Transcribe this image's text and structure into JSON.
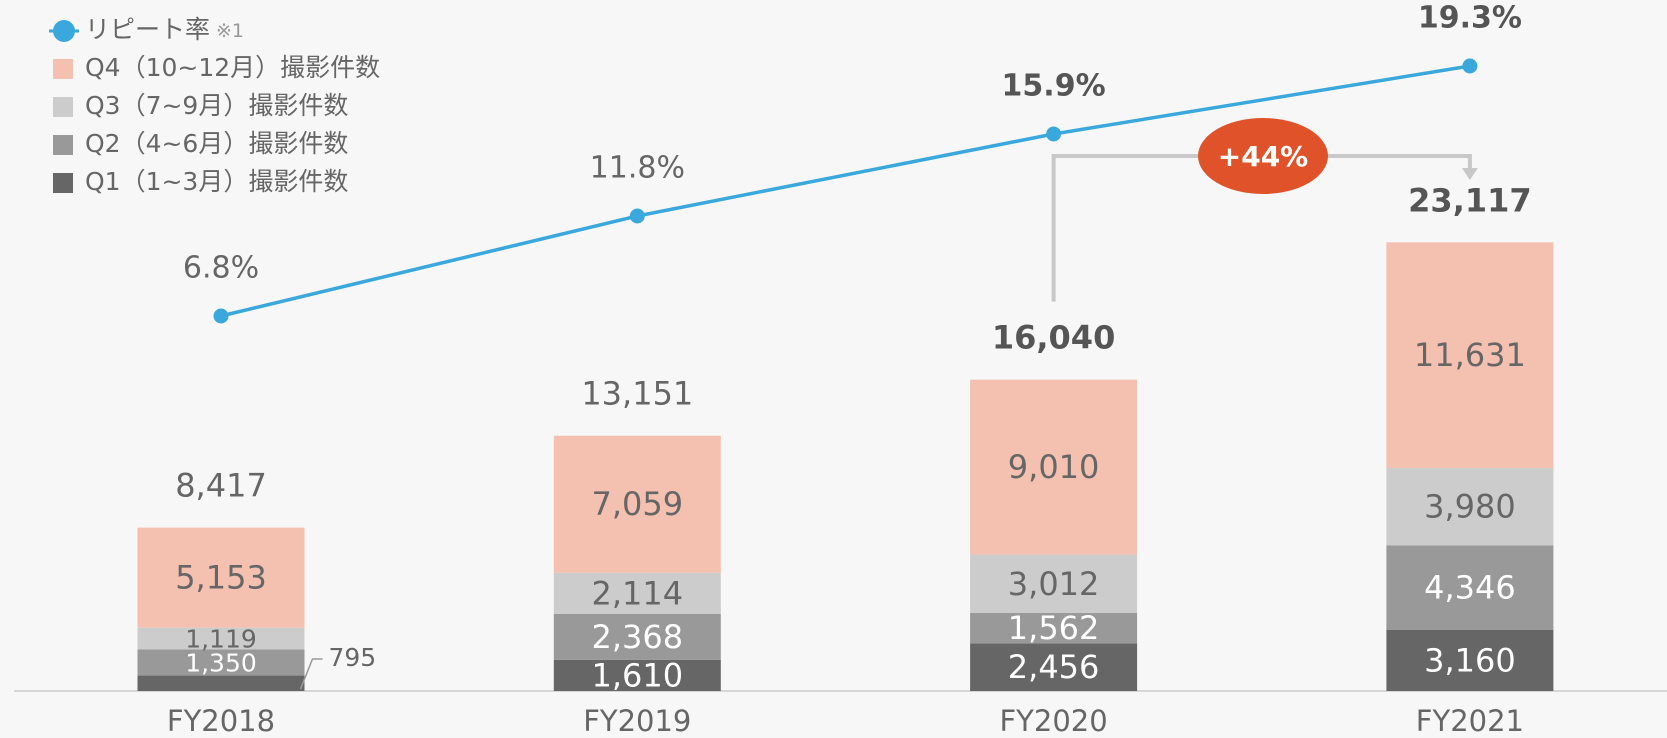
{
  "chart_data": {
    "type": "bar",
    "categories": [
      "FY2018",
      "FY2019",
      "FY2020",
      "FY2021"
    ],
    "series": [
      {
        "name": "Q1（1~3月）撮影件数",
        "color": "#666666",
        "values": [
          795,
          1610,
          2456,
          3160
        ],
        "value_labels": [
          "795",
          "1,610",
          "2,456",
          "3,160"
        ]
      },
      {
        "name": "Q2（4~6月）撮影件数",
        "color": "#999999",
        "values": [
          1350,
          2368,
          1562,
          4346
        ],
        "value_labels": [
          "1,350",
          "2,368",
          "1,562",
          "4,346"
        ]
      },
      {
        "name": "Q3（7~9月）撮影件数",
        "color": "#cccccc",
        "values": [
          1119,
          2114,
          3012,
          3980
        ],
        "value_labels": [
          "1,119",
          "2,114",
          "3,012",
          "3,980"
        ]
      },
      {
        "name": "Q4（10~12月）撮影件数",
        "color": "#f4c0b0",
        "values": [
          5153,
          7059,
          9010,
          11631
        ],
        "value_labels": [
          "5,153",
          "7,059",
          "9,010",
          "11,631"
        ]
      }
    ],
    "totals": [
      8417,
      13151,
      16040,
      23117
    ],
    "total_labels": [
      "8,417",
      "13,151",
      "16,040",
      "23,117"
    ],
    "line": {
      "type": "line",
      "name": "リピート率",
      "note": "※1",
      "color": "#3aa8dc",
      "values": [
        6.8,
        11.8,
        15.9,
        19.3
      ],
      "value_labels": [
        "6.8%",
        "11.8%",
        "15.9%",
        "19.3%"
      ]
    },
    "annotation": "+44%"
  }
}
